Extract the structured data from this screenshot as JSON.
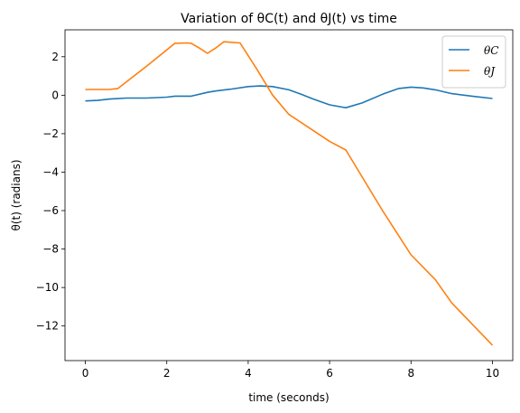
{
  "chart_data": {
    "type": "line",
    "title": "Variation of θC(t) and θJ(t) vs time",
    "xlabel": "time (seconds)",
    "ylabel": "θ(t) (radians)",
    "xlim": [
      -0.5,
      10.5
    ],
    "ylim": [
      -13.8,
      3.4
    ],
    "xticks": [
      0,
      2,
      4,
      6,
      8,
      10
    ],
    "yticks": [
      2,
      0,
      -2,
      -4,
      -6,
      -8,
      -10,
      -12
    ],
    "ytick_labels": [
      "2",
      "0",
      "−2",
      "−4",
      "−6",
      "−8",
      "−10",
      "−12"
    ],
    "grid": false,
    "legend_position": "top-right",
    "series": [
      {
        "name": "θC",
        "color": "#1f77b4",
        "x": [
          0,
          0.3,
          0.6,
          1.0,
          1.5,
          2.0,
          2.2,
          2.6,
          3.0,
          3.2,
          3.6,
          4.0,
          4.3,
          4.6,
          5.0,
          5.3,
          5.6,
          6.0,
          6.4,
          6.8,
          7.3,
          7.7,
          8.0,
          8.3,
          8.6,
          9.0,
          9.5,
          10.0
        ],
        "y": [
          -0.3,
          -0.27,
          -0.2,
          -0.15,
          -0.15,
          -0.1,
          -0.05,
          -0.05,
          0.15,
          0.22,
          0.32,
          0.45,
          0.48,
          0.45,
          0.28,
          0.05,
          -0.2,
          -0.5,
          -0.65,
          -0.4,
          0.05,
          0.35,
          0.42,
          0.38,
          0.28,
          0.08,
          -0.05,
          -0.17
        ]
      },
      {
        "name": "θJ",
        "color": "#ff7f0e",
        "x": [
          0,
          0.6,
          0.8,
          1.5,
          2.0,
          2.2,
          2.5,
          2.6,
          2.8,
          3.0,
          3.2,
          3.4,
          3.8,
          4.2,
          4.6,
          5.0,
          6.0,
          6.4,
          7.3,
          8.0,
          8.6,
          9.0,
          10.0
        ],
        "y": [
          0.3,
          0.3,
          0.35,
          1.5,
          2.35,
          2.7,
          2.72,
          2.7,
          2.45,
          2.18,
          2.45,
          2.78,
          2.72,
          1.4,
          0.0,
          -1.0,
          -2.4,
          -2.85,
          -6.0,
          -8.3,
          -9.6,
          -10.8,
          -13.0
        ]
      }
    ]
  }
}
